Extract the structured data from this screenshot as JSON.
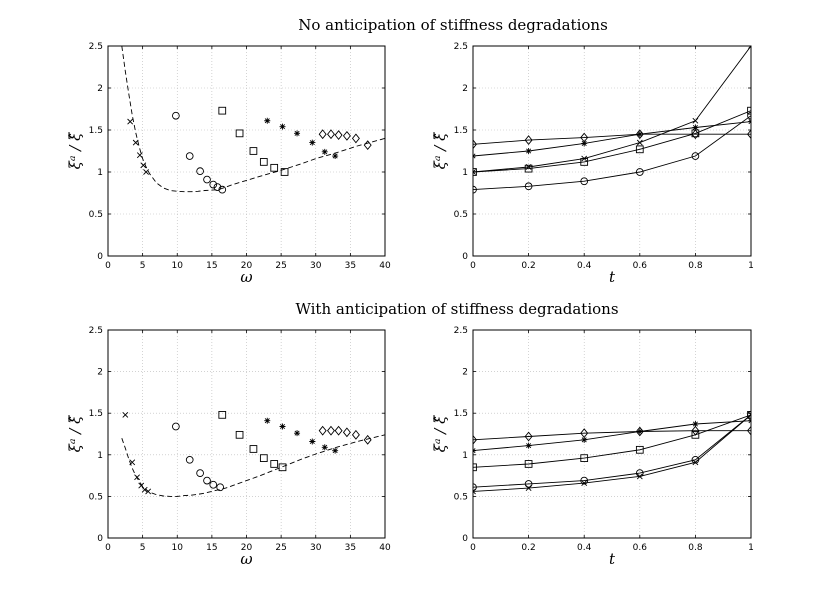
{
  "titles": {
    "top": "No anticipation of stiffness degradations",
    "bottom": "With anticipation of stiffness degradations"
  },
  "chart_data": [
    {
      "id": "top-left",
      "type": "scatter",
      "xlabel": "ω",
      "ylabel": "ξᵃ / ξ̂",
      "xlim": [
        0,
        40
      ],
      "ylim": [
        0,
        2.5
      ],
      "xticks": [
        "0",
        "5",
        "10",
        "15",
        "20",
        "25",
        "30",
        "35",
        "40"
      ],
      "yticks": [
        "0",
        "0.5",
        "1",
        "1.5",
        "2",
        "2.5"
      ],
      "grid": true,
      "series": [
        {
          "name": "cross",
          "marker": "x",
          "points": [
            [
              3.2,
              1.6
            ],
            [
              4.0,
              1.35
            ],
            [
              4.6,
              1.2
            ],
            [
              5.1,
              1.08
            ],
            [
              5.5,
              1.0
            ]
          ]
        },
        {
          "name": "circle",
          "marker": "o",
          "points": [
            [
              9.8,
              1.67
            ],
            [
              11.8,
              1.19
            ],
            [
              13.3,
              1.01
            ],
            [
              14.3,
              0.91
            ],
            [
              15.2,
              0.85
            ],
            [
              15.8,
              0.82
            ],
            [
              16.5,
              0.79
            ]
          ]
        },
        {
          "name": "square",
          "marker": "s",
          "points": [
            [
              16.5,
              1.73
            ],
            [
              19.0,
              1.46
            ],
            [
              21.0,
              1.25
            ],
            [
              22.5,
              1.12
            ],
            [
              24.0,
              1.05
            ],
            [
              25.5,
              1.0
            ]
          ]
        },
        {
          "name": "star",
          "marker": "*",
          "points": [
            [
              23.0,
              1.61
            ],
            [
              25.2,
              1.54
            ],
            [
              27.3,
              1.46
            ],
            [
              29.5,
              1.35
            ],
            [
              31.3,
              1.24
            ],
            [
              32.8,
              1.19
            ]
          ]
        },
        {
          "name": "diamond",
          "marker": "d",
          "points": [
            [
              31.0,
              1.45
            ],
            [
              32.2,
              1.45
            ],
            [
              33.3,
              1.44
            ],
            [
              34.5,
              1.43
            ],
            [
              35.8,
              1.4
            ],
            [
              37.5,
              1.32
            ]
          ]
        }
      ],
      "curve": {
        "style": "dashed",
        "points": [
          [
            2,
            2.5
          ],
          [
            2.5,
            2.2
          ],
          [
            3,
            1.93
          ],
          [
            3.5,
            1.68
          ],
          [
            4,
            1.47
          ],
          [
            4.5,
            1.3
          ],
          [
            5,
            1.16
          ],
          [
            5.5,
            1.06
          ],
          [
            6,
            0.98
          ],
          [
            7,
            0.87
          ],
          [
            8,
            0.81
          ],
          [
            9,
            0.78
          ],
          [
            10,
            0.77
          ],
          [
            11,
            0.765
          ],
          [
            12,
            0.765
          ],
          [
            13,
            0.77
          ],
          [
            14,
            0.78
          ],
          [
            15,
            0.785
          ],
          [
            16,
            0.79
          ],
          [
            17,
            0.82
          ],
          [
            18,
            0.85
          ],
          [
            20,
            0.9
          ],
          [
            22,
            0.95
          ],
          [
            25,
            1.02
          ],
          [
            28,
            1.1
          ],
          [
            30,
            1.16
          ],
          [
            33,
            1.23
          ],
          [
            36,
            1.31
          ],
          [
            40,
            1.4
          ]
        ]
      }
    },
    {
      "id": "top-right",
      "type": "line",
      "xlabel": "t",
      "ylabel": "ξᵃ / ξ̂",
      "xlim": [
        0,
        1
      ],
      "ylim": [
        0,
        2.5
      ],
      "xticks": [
        "0",
        "0.2",
        "0.4",
        "0.6",
        "0.8",
        "1"
      ],
      "yticks": [
        "0",
        "0.5",
        "1",
        "1.5",
        "2",
        "2.5"
      ],
      "grid": true,
      "x": [
        0,
        0.2,
        0.4,
        0.6,
        0.8,
        1
      ],
      "series": [
        {
          "name": "diamond",
          "marker": "d",
          "values": [
            1.33,
            1.38,
            1.41,
            1.45,
            1.45,
            1.45
          ]
        },
        {
          "name": "star",
          "marker": "*",
          "values": [
            1.19,
            1.25,
            1.34,
            1.45,
            1.53,
            1.6
          ]
        },
        {
          "name": "square",
          "marker": "s",
          "values": [
            1.0,
            1.04,
            1.12,
            1.27,
            1.46,
            1.73
          ]
        },
        {
          "name": "cross",
          "marker": "x",
          "values": [
            1.0,
            1.06,
            1.16,
            1.35,
            1.61,
            2.5
          ]
        },
        {
          "name": "circle",
          "marker": "o",
          "values": [
            0.79,
            0.83,
            0.89,
            1.0,
            1.19,
            1.67
          ]
        }
      ]
    },
    {
      "id": "bottom-left",
      "type": "scatter",
      "xlabel": "ω",
      "ylabel": "ξᵃ / ξ̂",
      "xlim": [
        0,
        40
      ],
      "ylim": [
        0,
        2.5
      ],
      "xticks": [
        "0",
        "5",
        "10",
        "15",
        "20",
        "25",
        "30",
        "35",
        "40"
      ],
      "yticks": [
        "0",
        "0.5",
        "1",
        "1.5",
        "2",
        "2.5"
      ],
      "grid": true,
      "series": [
        {
          "name": "cross",
          "marker": "x",
          "points": [
            [
              2.5,
              1.48
            ],
            [
              3.5,
              0.91
            ],
            [
              4.2,
              0.73
            ],
            [
              4.8,
              0.63
            ],
            [
              5.3,
              0.58
            ],
            [
              5.8,
              0.56
            ]
          ]
        },
        {
          "name": "circle",
          "marker": "o",
          "points": [
            [
              9.8,
              1.34
            ],
            [
              11.8,
              0.94
            ],
            [
              13.3,
              0.78
            ],
            [
              14.3,
              0.69
            ],
            [
              15.2,
              0.64
            ],
            [
              16.2,
              0.61
            ]
          ]
        },
        {
          "name": "square",
          "marker": "s",
          "points": [
            [
              16.5,
              1.48
            ],
            [
              19.0,
              1.24
            ],
            [
              21.0,
              1.07
            ],
            [
              22.5,
              0.96
            ],
            [
              24.0,
              0.89
            ],
            [
              25.2,
              0.85
            ]
          ]
        },
        {
          "name": "star",
          "marker": "*",
          "points": [
            [
              23.0,
              1.41
            ],
            [
              25.2,
              1.34
            ],
            [
              27.3,
              1.26
            ],
            [
              29.5,
              1.16
            ],
            [
              31.3,
              1.09
            ],
            [
              32.8,
              1.05
            ]
          ]
        },
        {
          "name": "diamond",
          "marker": "d",
          "points": [
            [
              31.0,
              1.29
            ],
            [
              32.2,
              1.29
            ],
            [
              33.3,
              1.29
            ],
            [
              34.5,
              1.27
            ],
            [
              35.8,
              1.24
            ],
            [
              37.5,
              1.18
            ]
          ]
        }
      ],
      "curve": {
        "style": "dashed",
        "points": [
          [
            2,
            1.2
          ],
          [
            2.5,
            1.08
          ],
          [
            3,
            0.95
          ],
          [
            3.5,
            0.84
          ],
          [
            4,
            0.75
          ],
          [
            4.5,
            0.68
          ],
          [
            5,
            0.62
          ],
          [
            5.5,
            0.58
          ],
          [
            6,
            0.55
          ],
          [
            7,
            0.52
          ],
          [
            8,
            0.505
          ],
          [
            9,
            0.5
          ],
          [
            10,
            0.5
          ],
          [
            11,
            0.51
          ],
          [
            12,
            0.515
          ],
          [
            13,
            0.525
          ],
          [
            14,
            0.54
          ],
          [
            15,
            0.56
          ],
          [
            16,
            0.58
          ],
          [
            17,
            0.6
          ],
          [
            18,
            0.63
          ],
          [
            20,
            0.69
          ],
          [
            22,
            0.75
          ],
          [
            25,
            0.85
          ],
          [
            28,
            0.95
          ],
          [
            30,
            1.01
          ],
          [
            33,
            1.09
          ],
          [
            36,
            1.16
          ],
          [
            40,
            1.24
          ]
        ]
      }
    },
    {
      "id": "bottom-right",
      "type": "line",
      "xlabel": "t",
      "ylabel": "ξᵃ / ξ̂",
      "xlim": [
        0,
        1
      ],
      "ylim": [
        0,
        2.5
      ],
      "xticks": [
        "0",
        "0.2",
        "0.4",
        "0.6",
        "0.8",
        "1"
      ],
      "yticks": [
        "0",
        "0.5",
        "1",
        "1.5",
        "2",
        "2.5"
      ],
      "grid": true,
      "x": [
        0,
        0.2,
        0.4,
        0.6,
        0.8,
        1
      ],
      "series": [
        {
          "name": "diamond",
          "marker": "d",
          "values": [
            1.18,
            1.22,
            1.26,
            1.28,
            1.29,
            1.29
          ]
        },
        {
          "name": "star",
          "marker": "*",
          "values": [
            1.05,
            1.11,
            1.18,
            1.28,
            1.37,
            1.41
          ]
        },
        {
          "name": "square",
          "marker": "s",
          "values": [
            0.85,
            0.89,
            0.96,
            1.06,
            1.24,
            1.48
          ]
        },
        {
          "name": "circle",
          "marker": "o",
          "values": [
            0.61,
            0.65,
            0.69,
            0.78,
            0.94,
            1.48
          ]
        },
        {
          "name": "cross",
          "marker": "x",
          "values": [
            0.56,
            0.6,
            0.66,
            0.74,
            0.91,
            1.48
          ]
        }
      ]
    }
  ]
}
